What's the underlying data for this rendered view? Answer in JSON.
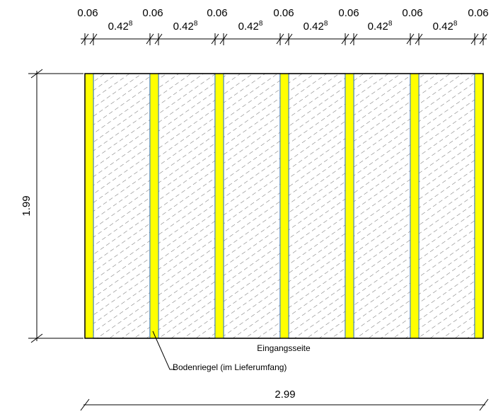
{
  "drawing": {
    "top_dimensions": {
      "spacer_label": "0.06",
      "panel_label": "0.42",
      "panel_label_sup": "8"
    },
    "height_label": "1.99",
    "width_label": "2.99",
    "entrance_label": "Eingangsseite",
    "sill_label": "Bodenriegel (im Lieferumfang)",
    "panel_count": 6,
    "spacer_count": 7,
    "colors": {
      "spacer_fill": "#ffff00",
      "spacer_edge": "#3a86c8",
      "hatch": "#444444",
      "line": "#000000"
    }
  }
}
